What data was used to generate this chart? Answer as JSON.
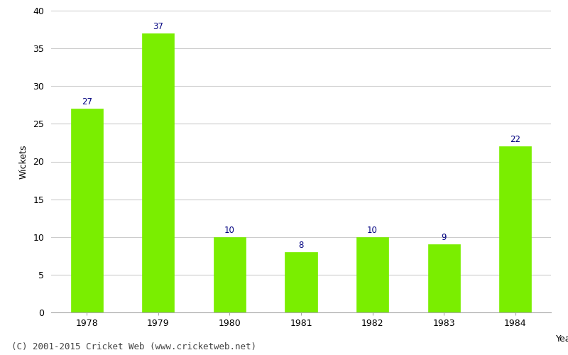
{
  "categories": [
    "1978",
    "1979",
    "1980",
    "1981",
    "1982",
    "1983",
    "1984"
  ],
  "values": [
    27,
    37,
    10,
    8,
    10,
    9,
    22
  ],
  "bar_color": "#7aee00",
  "bar_edge_color": "#7aee00",
  "label_color": "#000080",
  "label_fontsize": 8.5,
  "xlabel": "Year",
  "ylabel": "Wickets",
  "ylim": [
    0,
    40
  ],
  "yticks": [
    0,
    5,
    10,
    15,
    20,
    25,
    30,
    35,
    40
  ],
  "grid_color": "#cccccc",
  "background_color": "#ffffff",
  "footer_text": "(C) 2001-2015 Cricket Web (www.cricketweb.net)",
  "footer_fontsize": 9,
  "bar_width": 0.45
}
